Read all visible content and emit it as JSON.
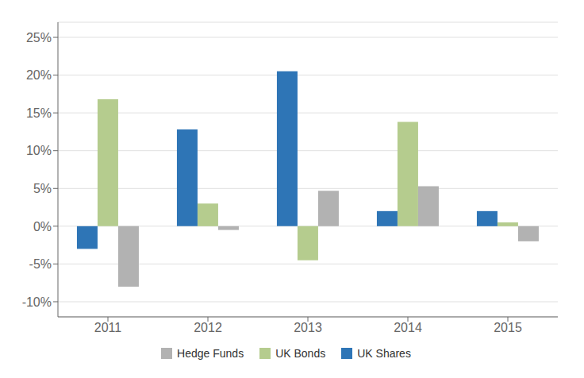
{
  "chart_data": {
    "type": "bar",
    "categories": [
      "2011",
      "2012",
      "2013",
      "2014",
      "2015"
    ],
    "series": [
      {
        "name": "UK Shares",
        "color": "#2e75b6",
        "values": [
          -3.0,
          12.8,
          20.5,
          2.0,
          2.0
        ]
      },
      {
        "name": "UK Bonds",
        "color": "#b5cc8e",
        "values": [
          16.8,
          3.0,
          -4.5,
          13.8,
          0.5
        ]
      },
      {
        "name": "Hedge Funds",
        "color": "#b2b2b2",
        "values": [
          -8.0,
          -0.5,
          4.7,
          5.3,
          -2.0
        ]
      }
    ],
    "ylim": [
      -12,
      27
    ],
    "yticks": [
      {
        "value": -10,
        "label": "-10%"
      },
      {
        "value": -5,
        "label": "-5%"
      },
      {
        "value": 0,
        "label": "0%"
      },
      {
        "value": 5,
        "label": "5%"
      },
      {
        "value": 10,
        "label": "10%"
      },
      {
        "value": 15,
        "label": "15%"
      },
      {
        "value": 20,
        "label": "20%"
      },
      {
        "value": 25,
        "label": "25%"
      }
    ],
    "grid": true,
    "legend": "bottom"
  }
}
